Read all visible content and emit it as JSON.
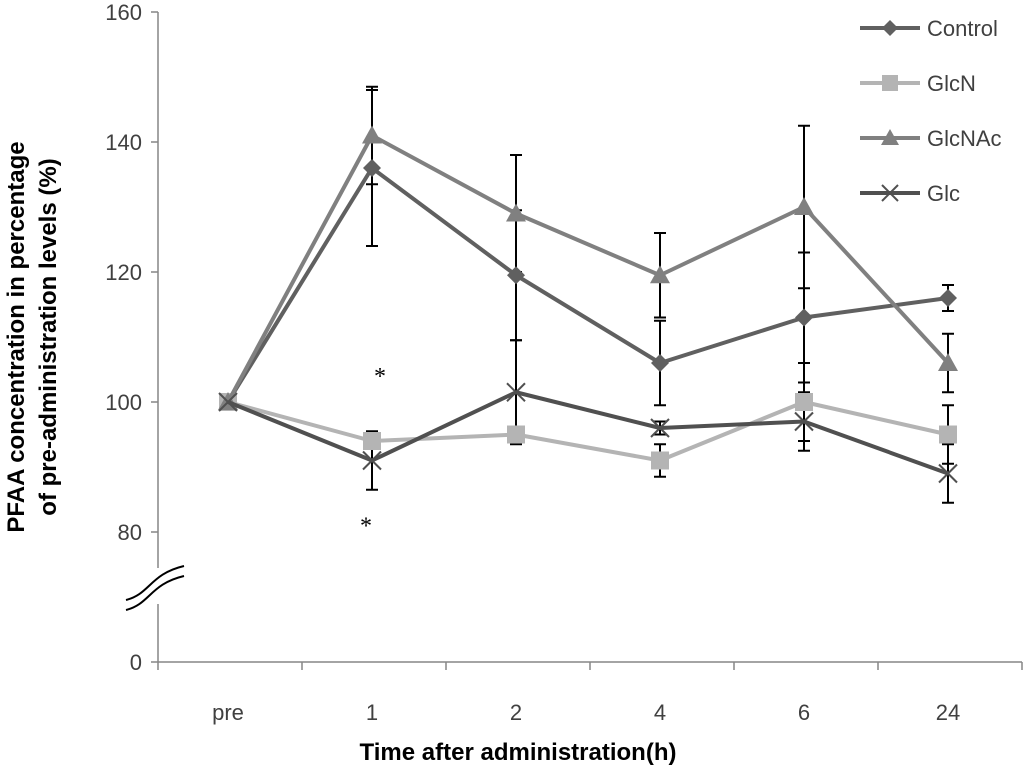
{
  "chart_data": {
    "type": "line",
    "title": "",
    "xlabel": "Time after administration(h)",
    "ylabel_line1": "PFAA concentration in percentage",
    "ylabel_line2": "of pre-administration levels (%)",
    "categories": [
      "pre",
      "1",
      "2",
      "4",
      "6",
      "24"
    ],
    "ylim": [
      0,
      160
    ],
    "yticks": [
      0,
      80,
      100,
      120,
      140,
      160
    ],
    "y_axis_break": [
      0,
      80
    ],
    "series": [
      {
        "name": "Control",
        "marker": "diamond",
        "color": "#606060",
        "values": [
          100,
          136,
          119.5,
          106,
          113,
          116
        ],
        "errors": [
          0,
          12,
          10,
          6.5,
          10,
          2
        ]
      },
      {
        "name": "GlcN",
        "marker": "square",
        "color": "#b4b4b4",
        "values": [
          100,
          94,
          95,
          91,
          100,
          95
        ],
        "errors": [
          0,
          0,
          0,
          2.5,
          6,
          4.5
        ]
      },
      {
        "name": "GlcNAc",
        "marker": "triangle",
        "color": "#808080",
        "values": [
          100,
          141,
          129,
          119.5,
          130,
          106
        ],
        "errors": [
          0,
          7.5,
          9,
          6.5,
          12.5,
          4.5
        ]
      },
      {
        "name": "Glc",
        "marker": "x",
        "color": "#505050",
        "values": [
          100,
          91,
          101.5,
          96,
          97,
          89
        ],
        "errors": [
          0,
          4.5,
          8,
          1,
          4.5,
          4.5
        ]
      }
    ],
    "annotations": [
      {
        "text": "*",
        "category": "1",
        "value": 104
      },
      {
        "text": "*",
        "category": "1",
        "value": 81
      }
    ]
  }
}
